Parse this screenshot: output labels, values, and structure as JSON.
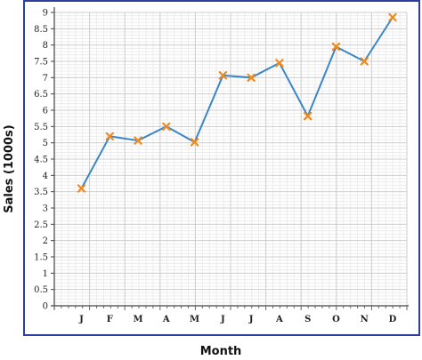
{
  "chart_data": {
    "type": "line",
    "title": "",
    "xlabel": "Month",
    "ylabel": "Sales (1000s)",
    "categories": [
      "J",
      "F",
      "M",
      "A",
      "M",
      "J",
      "J",
      "A",
      "S",
      "O",
      "N",
      "D"
    ],
    "series": [
      {
        "values": [
          3.6,
          5.2,
          5.07,
          5.5,
          5.02,
          7.07,
          7.0,
          7.45,
          5.82,
          7.95,
          7.5,
          8.85
        ]
      }
    ],
    "ylim": [
      0,
      9
    ],
    "yticks": [
      "0",
      "0.5",
      "1",
      "1.5",
      "2",
      "2.5",
      "3",
      "3.5",
      "4",
      "4.5",
      "5",
      "5.5",
      "6",
      "6.5",
      "7",
      "7.5",
      "8",
      "8.5",
      "9"
    ],
    "grid": true,
    "colors": {
      "line": "#3a86c8",
      "marker": "#f08a1c",
      "frame": "#2c3e9e",
      "grid_major": "#cfcfcf",
      "grid_minor": "#ececec"
    }
  }
}
